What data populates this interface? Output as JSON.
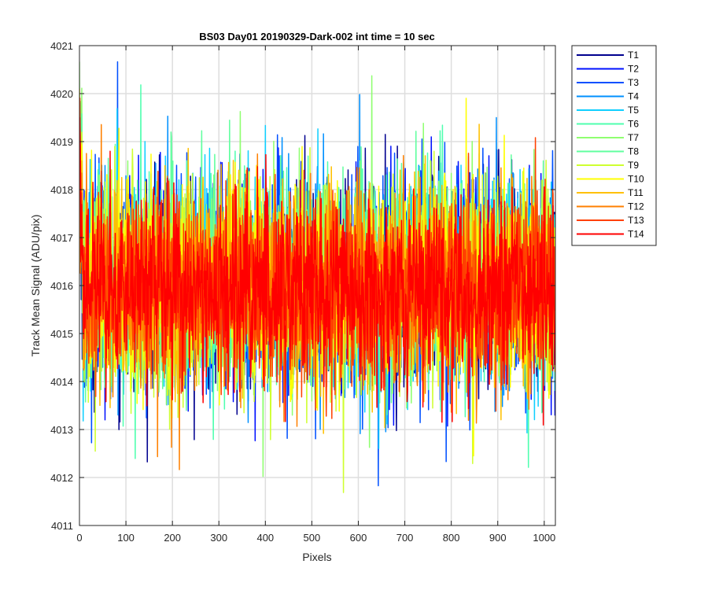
{
  "chart_data": {
    "type": "line",
    "title": "BS03 Day01 20190329-Dark-002 int time = 10 sec",
    "xlabel": "Pixels",
    "ylabel": "Track Mean Signal (ADU/pix)",
    "xlim": [
      0,
      1024
    ],
    "ylim": [
      4011,
      4021
    ],
    "xticks": [
      0,
      100,
      200,
      300,
      400,
      500,
      600,
      700,
      800,
      900,
      1000
    ],
    "yticks": [
      4011,
      4012,
      4013,
      4014,
      4015,
      4016,
      4017,
      4018,
      4019,
      4020,
      4021
    ],
    "grid": true,
    "legend_position": "outside-top-right",
    "n_points": 1024,
    "series": [
      {
        "name": "T1",
        "color": "#00008f",
        "mean": 4016.0,
        "noise": 1.05
      },
      {
        "name": "T2",
        "color": "#0010ff",
        "mean": 4016.0,
        "noise": 1.05
      },
      {
        "name": "T3",
        "color": "#0050ff",
        "mean": 4016.0,
        "noise": 1.05
      },
      {
        "name": "T4",
        "color": "#0090ff",
        "mean": 4016.0,
        "noise": 1.05
      },
      {
        "name": "T5",
        "color": "#10cfff",
        "mean": 4016.1,
        "noise": 1.05
      },
      {
        "name": "T6",
        "color": "#4fffaf",
        "mean": 4016.1,
        "noise": 1.05
      },
      {
        "name": "T7",
        "color": "#8fff70",
        "mean": 4016.1,
        "noise": 1.05
      },
      {
        "name": "T8",
        "color": "#60ff9f",
        "mean": 4016.1,
        "noise": 1.05
      },
      {
        "name": "T9",
        "color": "#cfff30",
        "mean": 4016.0,
        "noise": 1.05
      },
      {
        "name": "T10",
        "color": "#ffff00",
        "mean": 4016.0,
        "noise": 1.05
      },
      {
        "name": "T11",
        "color": "#ffc000",
        "mean": 4016.0,
        "noise": 1.0
      },
      {
        "name": "T12",
        "color": "#ff8000",
        "mean": 4016.0,
        "noise": 1.0
      },
      {
        "name": "T13",
        "color": "#ff4000",
        "mean": 4015.9,
        "noise": 0.95
      },
      {
        "name": "T14",
        "color": "#ff0000",
        "mean": 4015.9,
        "noise": 0.95
      }
    ]
  }
}
